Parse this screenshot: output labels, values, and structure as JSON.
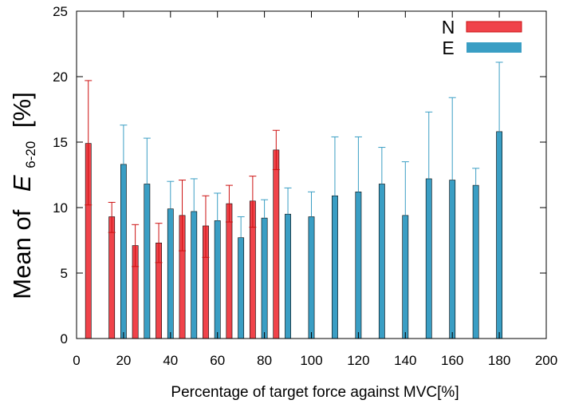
{
  "chart_data": {
    "type": "bar",
    "xlabel": "Percentage of target force against MVC[%]",
    "ylabel": {
      "prefix": "Mean of",
      "symbol": "E",
      "subscript": "6-20",
      "suffix": "[%]"
    },
    "xlim": [
      0,
      200
    ],
    "ylim": [
      0,
      25
    ],
    "xticks": [
      0,
      20,
      40,
      60,
      80,
      100,
      120,
      140,
      160,
      180,
      200
    ],
    "yticks": [
      0,
      5,
      10,
      15,
      20,
      25
    ],
    "grid": false,
    "legend_position": "top-right",
    "series": [
      {
        "name": "N",
        "color": "#f0434a",
        "error_color": "#cc1111",
        "x": [
          5,
          15,
          25,
          35,
          45,
          55,
          65,
          75,
          85
        ],
        "values": [
          14.9,
          9.3,
          7.1,
          7.3,
          9.4,
          8.6,
          10.3,
          10.5,
          14.4
        ],
        "error_low": [
          10.2,
          8.1,
          5.5,
          5.8,
          6.7,
          6.2,
          8.9,
          8.5,
          12.9
        ],
        "error_high": [
          19.7,
          10.4,
          8.7,
          8.8,
          12.1,
          10.9,
          11.7,
          12.4,
          15.9
        ]
      },
      {
        "name": "E",
        "color": "#3a9ec4",
        "error_color": "#3a9ec4",
        "x": [
          20,
          30,
          40,
          50,
          60,
          70,
          80,
          90,
          100,
          110,
          120,
          130,
          140,
          150,
          160,
          170,
          180
        ],
        "values": [
          13.3,
          11.8,
          9.9,
          9.7,
          9.0,
          7.7,
          9.2,
          9.5,
          9.3,
          10.9,
          11.2,
          11.8,
          9.4,
          12.2,
          12.1,
          11.7,
          15.8
        ],
        "error_high": [
          16.3,
          15.3,
          12.0,
          12.2,
          11.1,
          9.3,
          10.6,
          11.5,
          11.2,
          15.4,
          15.4,
          14.6,
          13.5,
          17.3,
          18.4,
          13.0,
          21.1
        ]
      }
    ]
  }
}
